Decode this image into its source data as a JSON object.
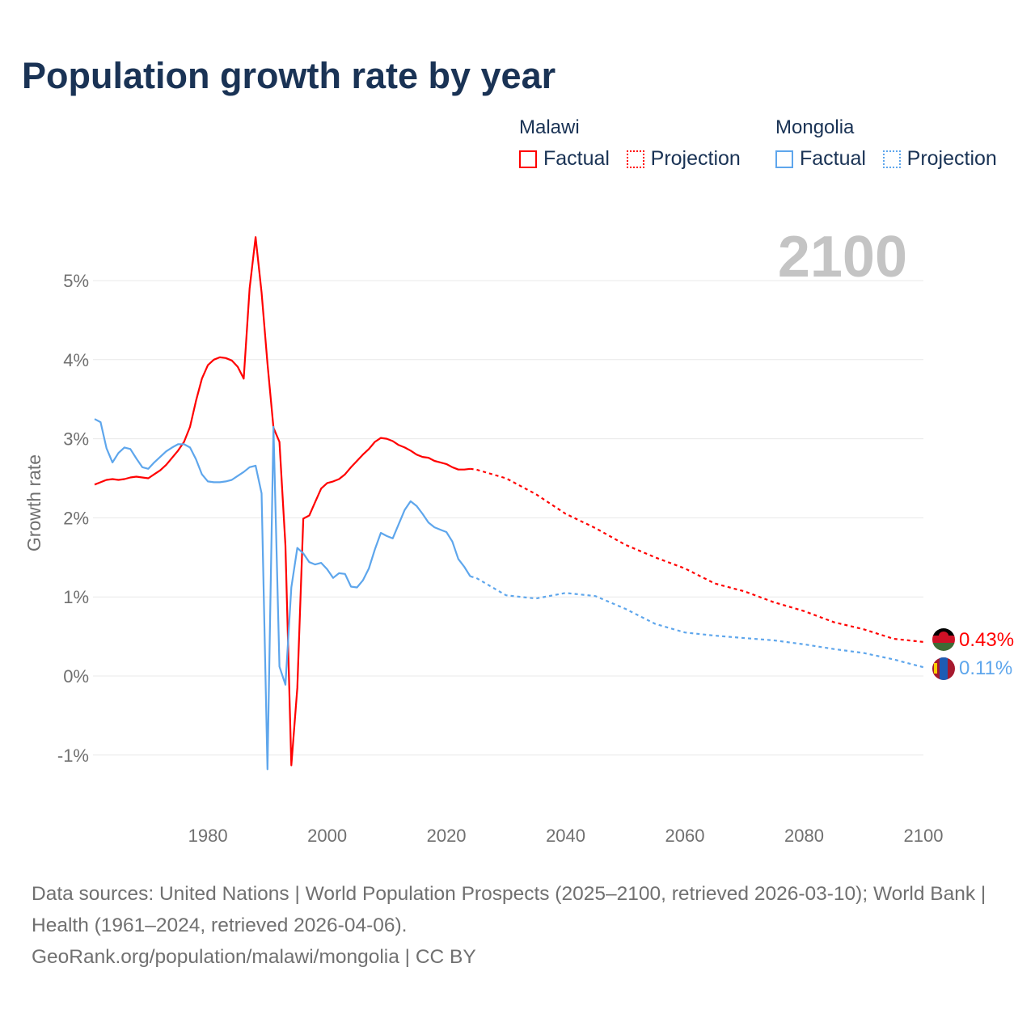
{
  "title": "Population growth rate by year",
  "legend": [
    {
      "country": "Malawi",
      "factual": "Factual",
      "projection": "Projection",
      "color": "#ff0000"
    },
    {
      "country": "Mongolia",
      "factual": "Factual",
      "projection": "Projection",
      "color": "#5ea6ec"
    }
  ],
  "current_year": "2100",
  "end_labels": {
    "malawi": "0.43%",
    "mongolia": "0.11%"
  },
  "footer": {
    "sources": "Data sources: United Nations | World Population Prospects (2025–2100, retrieved 2026-03-10); World Bank | Health (1961–2024, retrieved 2026-04-06).",
    "credit": "GeoRank.org/population/malawi/mongolia | CC BY"
  },
  "chart_data": {
    "type": "line",
    "title": "Population growth rate by year",
    "ylabel": "Growth rate",
    "xlabel": "",
    "xlim": [
      1961,
      2100
    ],
    "ylim": [
      -1.5,
      5.6
    ],
    "x_ticks": [
      1980,
      2000,
      2020,
      2040,
      2060,
      2080,
      2100
    ],
    "y_ticks": [
      {
        "v": -1,
        "label": "-1%"
      },
      {
        "v": 0,
        "label": "0%"
      },
      {
        "v": 1,
        "label": "1%"
      },
      {
        "v": 2,
        "label": "2%"
      },
      {
        "v": 3,
        "label": "3%"
      },
      {
        "v": 4,
        "label": "4%"
      },
      {
        "v": 5,
        "label": "5%"
      }
    ],
    "grid": true,
    "series": [
      {
        "name": "Malawi Factual",
        "color": "#ff0000",
        "style": "solid",
        "x_start": 1961,
        "values": [
          2.42,
          2.45,
          2.48,
          2.49,
          2.48,
          2.49,
          2.51,
          2.52,
          2.51,
          2.5,
          2.55,
          2.6,
          2.67,
          2.76,
          2.85,
          2.96,
          3.15,
          3.48,
          3.76,
          3.93,
          4.0,
          4.03,
          4.02,
          3.99,
          3.91,
          3.76,
          4.9,
          5.55,
          4.85,
          3.95,
          3.14,
          2.96,
          1.65,
          -1.13,
          -0.15,
          1.99,
          2.03,
          2.2,
          2.37,
          2.44,
          2.46,
          2.49,
          2.55,
          2.64,
          2.72,
          2.8,
          2.87,
          2.96,
          3.01,
          3.0,
          2.97,
          2.92,
          2.89,
          2.85,
          2.8,
          2.77,
          2.76,
          2.72,
          2.7,
          2.68,
          2.64,
          2.61,
          2.61,
          2.62
        ]
      },
      {
        "name": "Malawi Projection",
        "color": "#ff0000",
        "style": "dashed",
        "x": [
          2024,
          2025,
          2030,
          2035,
          2040,
          2045,
          2050,
          2055,
          2060,
          2065,
          2070,
          2075,
          2080,
          2085,
          2090,
          2095,
          2100
        ],
        "values": [
          2.62,
          2.61,
          2.5,
          2.3,
          2.05,
          1.87,
          1.66,
          1.5,
          1.36,
          1.17,
          1.07,
          0.93,
          0.82,
          0.68,
          0.59,
          0.47,
          0.43
        ]
      },
      {
        "name": "Mongolia Factual",
        "color": "#5ea6ec",
        "style": "solid",
        "x_start": 1961,
        "values": [
          3.25,
          3.21,
          2.88,
          2.7,
          2.82,
          2.89,
          2.87,
          2.75,
          2.64,
          2.62,
          2.7,
          2.77,
          2.84,
          2.89,
          2.93,
          2.93,
          2.89,
          2.74,
          2.55,
          2.46,
          2.45,
          2.45,
          2.46,
          2.48,
          2.53,
          2.58,
          2.64,
          2.66,
          2.31,
          -1.18,
          3.15,
          0.12,
          -0.11,
          1.12,
          1.62,
          1.55,
          1.44,
          1.41,
          1.43,
          1.35,
          1.24,
          1.3,
          1.29,
          1.13,
          1.12,
          1.21,
          1.36,
          1.6,
          1.81,
          1.77,
          1.74,
          1.92,
          2.1,
          2.21,
          2.15,
          2.05,
          1.94,
          1.88,
          1.85,
          1.82,
          1.7,
          1.48,
          1.38,
          1.26
        ]
      },
      {
        "name": "Mongolia Projection",
        "color": "#5ea6ec",
        "style": "dashed",
        "x": [
          2024,
          2025,
          2030,
          2035,
          2040,
          2045,
          2050,
          2055,
          2060,
          2065,
          2070,
          2075,
          2080,
          2085,
          2090,
          2095,
          2100
        ],
        "values": [
          1.26,
          1.24,
          1.02,
          0.98,
          1.05,
          1.01,
          0.85,
          0.66,
          0.55,
          0.51,
          0.48,
          0.45,
          0.4,
          0.34,
          0.29,
          0.21,
          0.11
        ]
      }
    ]
  }
}
